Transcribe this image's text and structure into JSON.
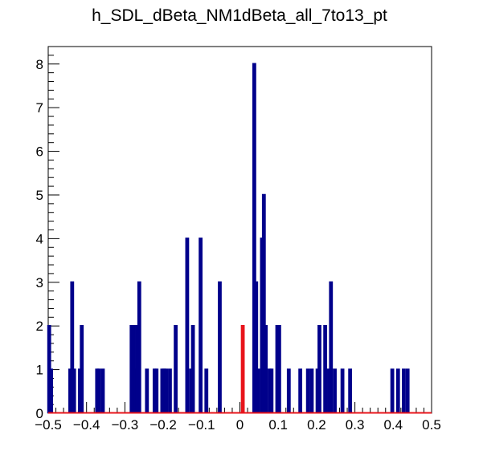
{
  "chart_data": {
    "type": "histogram",
    "title": "h_SDL_dBeta_NM1dBeta_all_7to13_pt",
    "xlabel": "",
    "ylabel": "",
    "xlim": [
      -0.5,
      0.5
    ],
    "ylim": [
      0,
      8.4
    ],
    "x_ticks": [
      "−0.5",
      "−0.4",
      "−0.3",
      "−0.2",
      "−0.1",
      "0",
      "0.1",
      "0.2",
      "0.3",
      "0.4",
      "0.5"
    ],
    "x_tick_values": [
      -0.5,
      -0.4,
      -0.3,
      -0.2,
      -0.1,
      0,
      0.1,
      0.2,
      0.3,
      0.4,
      0.5
    ],
    "y_ticks": [
      "0",
      "1",
      "2",
      "3",
      "4",
      "5",
      "6",
      "7",
      "8"
    ],
    "y_tick_values": [
      0,
      1,
      2,
      3,
      4,
      5,
      6,
      7,
      8
    ],
    "bin_width": 0.005,
    "grid": false,
    "series": [
      {
        "color": "#00008b",
        "bins": [
          {
            "x": -0.5,
            "y": 2
          },
          {
            "x": -0.495,
            "y": 1
          },
          {
            "x": -0.445,
            "y": 1
          },
          {
            "x": -0.44,
            "y": 3
          },
          {
            "x": -0.435,
            "y": 1
          },
          {
            "x": -0.42,
            "y": 1
          },
          {
            "x": -0.415,
            "y": 2
          },
          {
            "x": -0.375,
            "y": 1
          },
          {
            "x": -0.37,
            "y": 1
          },
          {
            "x": -0.36,
            "y": 1
          },
          {
            "x": -0.285,
            "y": 2
          },
          {
            "x": -0.28,
            "y": 2
          },
          {
            "x": -0.275,
            "y": 1
          },
          {
            "x": -0.27,
            "y": 2
          },
          {
            "x": -0.265,
            "y": 3
          },
          {
            "x": -0.245,
            "y": 1
          },
          {
            "x": -0.225,
            "y": 1
          },
          {
            "x": -0.22,
            "y": 1
          },
          {
            "x": -0.205,
            "y": 1
          },
          {
            "x": -0.2,
            "y": 1
          },
          {
            "x": -0.195,
            "y": 1
          },
          {
            "x": -0.185,
            "y": 1
          },
          {
            "x": -0.17,
            "y": 2
          },
          {
            "x": -0.14,
            "y": 4
          },
          {
            "x": -0.13,
            "y": 1
          },
          {
            "x": -0.125,
            "y": 2
          },
          {
            "x": -0.105,
            "y": 4
          },
          {
            "x": -0.09,
            "y": 1
          },
          {
            "x": -0.055,
            "y": 3
          },
          {
            "x": 0.035,
            "y": 8
          },
          {
            "x": 0.04,
            "y": 3
          },
          {
            "x": 0.045,
            "y": 1
          },
          {
            "x": 0.055,
            "y": 4
          },
          {
            "x": 0.06,
            "y": 5
          },
          {
            "x": 0.065,
            "y": 2
          },
          {
            "x": 0.075,
            "y": 1
          },
          {
            "x": 0.08,
            "y": 1
          },
          {
            "x": 0.095,
            "y": 2
          },
          {
            "x": 0.1,
            "y": 2
          },
          {
            "x": 0.125,
            "y": 1
          },
          {
            "x": 0.155,
            "y": 1
          },
          {
            "x": 0.175,
            "y": 1
          },
          {
            "x": 0.185,
            "y": 1
          },
          {
            "x": 0.2,
            "y": 1
          },
          {
            "x": 0.205,
            "y": 2
          },
          {
            "x": 0.22,
            "y": 2
          },
          {
            "x": 0.23,
            "y": 1
          },
          {
            "x": 0.235,
            "y": 3
          },
          {
            "x": 0.245,
            "y": 1
          },
          {
            "x": 0.265,
            "y": 1
          },
          {
            "x": 0.285,
            "y": 1
          },
          {
            "x": 0.395,
            "y": 1
          },
          {
            "x": 0.41,
            "y": 1
          },
          {
            "x": 0.425,
            "y": 1
          },
          {
            "x": 0.435,
            "y": 1
          }
        ]
      },
      {
        "color": "#e8141b",
        "bins": [
          {
            "x": 0.005,
            "y": 2
          }
        ]
      }
    ]
  }
}
